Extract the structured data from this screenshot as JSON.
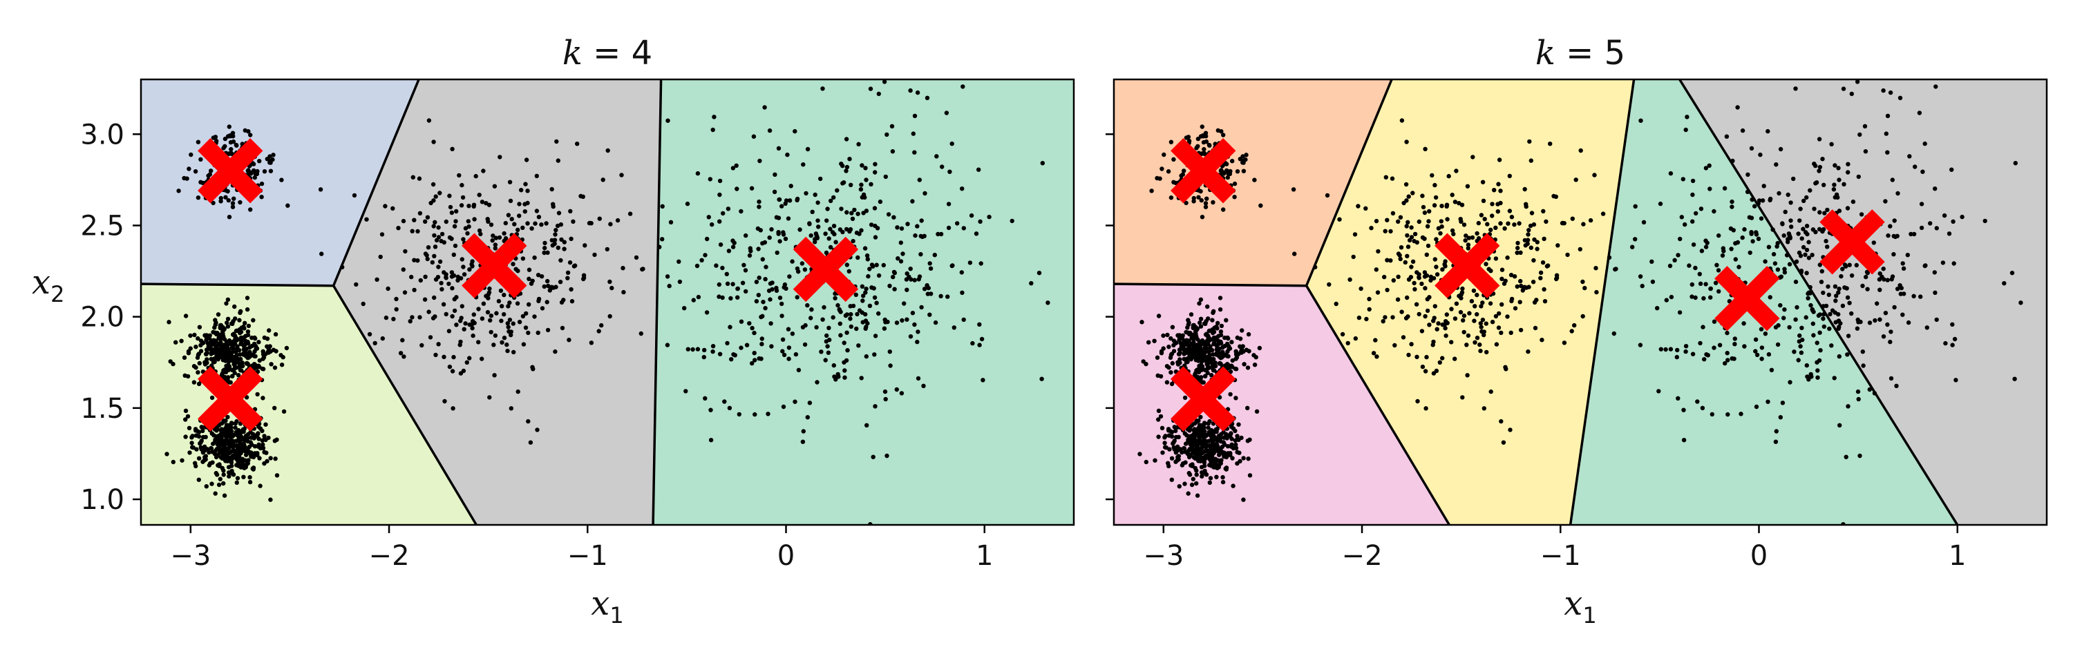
{
  "chart_data": [
    {
      "type": "scatter",
      "title": "k = 4",
      "title_var": "k",
      "title_value": "4",
      "xlabel": "x",
      "xlabel_sub": "1",
      "ylabel": "x",
      "ylabel_sub": "2",
      "xlim": [
        -3.25,
        1.45
      ],
      "ylim": [
        0.86,
        3.3
      ],
      "x_ticks": [
        -3,
        -2,
        -1,
        0,
        1
      ],
      "x_tick_labels": [
        "−3",
        "−2",
        "−1",
        "0",
        "1"
      ],
      "y_ticks": [
        1.0,
        1.5,
        2.0,
        2.5,
        3.0
      ],
      "y_tick_labels": [
        "1.0",
        "1.5",
        "2.0",
        "2.5",
        "3.0"
      ],
      "show_y_tick_labels": true,
      "grid": false,
      "centroids": [
        {
          "x": -2.8,
          "y": 2.8
        },
        {
          "x": -2.8,
          "y": 1.55
        },
        {
          "x": -1.47,
          "y": 2.28
        },
        {
          "x": 0.2,
          "y": 2.26
        }
      ],
      "regions": [
        {
          "color": "#cbd5e8",
          "points": [
            [
              -3.25,
              3.3
            ],
            [
              -1.85,
              3.3
            ],
            [
              -2.28,
              2.17
            ],
            [
              -3.25,
              2.18
            ]
          ]
        },
        {
          "color": "#e6f5c9",
          "points": [
            [
              -3.25,
              2.18
            ],
            [
              -2.28,
              2.17
            ],
            [
              -1.56,
              0.86
            ],
            [
              -3.25,
              0.86
            ]
          ]
        },
        {
          "color": "#cccccc",
          "points": [
            [
              -1.85,
              3.3
            ],
            [
              -0.63,
              3.3
            ],
            [
              -0.67,
              0.86
            ],
            [
              -1.56,
              0.86
            ],
            [
              -2.28,
              2.17
            ]
          ]
        },
        {
          "color": "#b3e2cd",
          "points": [
            [
              -0.63,
              3.3
            ],
            [
              1.45,
              3.3
            ],
            [
              1.45,
              0.86
            ],
            [
              -0.67,
              0.86
            ]
          ]
        }
      ],
      "boundaries": [
        [
          [
            -1.85,
            3.3
          ],
          [
            -2.28,
            2.17
          ],
          [
            -3.25,
            2.18
          ]
        ],
        [
          [
            -2.28,
            2.17
          ],
          [
            -1.56,
            0.86
          ]
        ],
        [
          [
            -0.63,
            3.3
          ],
          [
            -0.67,
            0.86
          ]
        ]
      ],
      "clusters": [
        {
          "cx": -2.8,
          "cy": 2.8,
          "sx": 0.1,
          "sy": 0.1,
          "n": 200
        },
        {
          "cx": -2.8,
          "cy": 1.8,
          "sx": 0.1,
          "sy": 0.1,
          "n": 400
        },
        {
          "cx": -2.8,
          "cy": 1.3,
          "sx": 0.1,
          "sy": 0.1,
          "n": 400
        },
        {
          "cx": -1.47,
          "cy": 2.28,
          "sx": 0.3,
          "sy": 0.3,
          "n": 400
        },
        {
          "cx": 0.2,
          "cy": 2.26,
          "sx": 0.4,
          "sy": 0.4,
          "n": 500
        }
      ]
    },
    {
      "type": "scatter",
      "title": "k = 5",
      "title_var": "k",
      "title_value": "5",
      "xlabel": "x",
      "xlabel_sub": "1",
      "ylabel": "",
      "ylabel_sub": "",
      "xlim": [
        -3.25,
        1.45
      ],
      "ylim": [
        0.86,
        3.3
      ],
      "x_ticks": [
        -3,
        -2,
        -1,
        0,
        1
      ],
      "x_tick_labels": [
        "−3",
        "−2",
        "−1",
        "0",
        "1"
      ],
      "y_ticks": [
        1.0,
        1.5,
        2.0,
        2.5,
        3.0
      ],
      "y_tick_labels": [
        "",
        "",
        "",
        "",
        ""
      ],
      "show_y_tick_labels": false,
      "grid": false,
      "centroids": [
        {
          "x": -2.8,
          "y": 2.8
        },
        {
          "x": -2.8,
          "y": 1.55
        },
        {
          "x": -1.47,
          "y": 2.28
        },
        {
          "x": -0.06,
          "y": 2.1
        },
        {
          "x": 0.47,
          "y": 2.41
        }
      ],
      "regions": [
        {
          "color": "#fdcdac",
          "points": [
            [
              -3.25,
              3.3
            ],
            [
              -1.85,
              3.3
            ],
            [
              -2.28,
              2.17
            ],
            [
              -3.25,
              2.18
            ]
          ]
        },
        {
          "color": "#f4cae4",
          "points": [
            [
              -3.25,
              2.18
            ],
            [
              -2.28,
              2.17
            ],
            [
              -1.56,
              0.86
            ],
            [
              -3.25,
              0.86
            ]
          ]
        },
        {
          "color": "#fff2ae",
          "points": [
            [
              -1.85,
              3.3
            ],
            [
              -0.63,
              3.3
            ],
            [
              -0.95,
              0.86
            ],
            [
              -1.56,
              0.86
            ],
            [
              -2.28,
              2.17
            ]
          ]
        },
        {
          "color": "#b3e2cd",
          "points": [
            [
              -0.63,
              3.3
            ],
            [
              -0.4,
              3.3
            ],
            [
              1.0,
              0.86
            ],
            [
              -0.95,
              0.86
            ]
          ]
        },
        {
          "color": "#cccccc",
          "points": [
            [
              -0.4,
              3.3
            ],
            [
              1.45,
              3.3
            ],
            [
              1.45,
              0.86
            ],
            [
              1.0,
              0.86
            ]
          ]
        }
      ],
      "boundaries": [
        [
          [
            -1.85,
            3.3
          ],
          [
            -2.28,
            2.17
          ],
          [
            -3.25,
            2.18
          ]
        ],
        [
          [
            -2.28,
            2.17
          ],
          [
            -1.56,
            0.86
          ]
        ],
        [
          [
            -0.63,
            3.3
          ],
          [
            -0.95,
            0.86
          ]
        ],
        [
          [
            -0.4,
            3.3
          ],
          [
            1.0,
            0.86
          ]
        ]
      ],
      "clusters": [
        {
          "cx": -2.8,
          "cy": 2.8,
          "sx": 0.1,
          "sy": 0.1,
          "n": 200
        },
        {
          "cx": -2.8,
          "cy": 1.8,
          "sx": 0.1,
          "sy": 0.1,
          "n": 400
        },
        {
          "cx": -2.8,
          "cy": 1.3,
          "sx": 0.1,
          "sy": 0.1,
          "n": 400
        },
        {
          "cx": -1.47,
          "cy": 2.28,
          "sx": 0.3,
          "sy": 0.3,
          "n": 400
        },
        {
          "cx": 0.2,
          "cy": 2.26,
          "sx": 0.4,
          "sy": 0.4,
          "n": 500
        }
      ]
    }
  ],
  "colors": {
    "centroid": "#ff0000",
    "point": "#000000",
    "boundary": "#000000",
    "axis": "#000000"
  }
}
